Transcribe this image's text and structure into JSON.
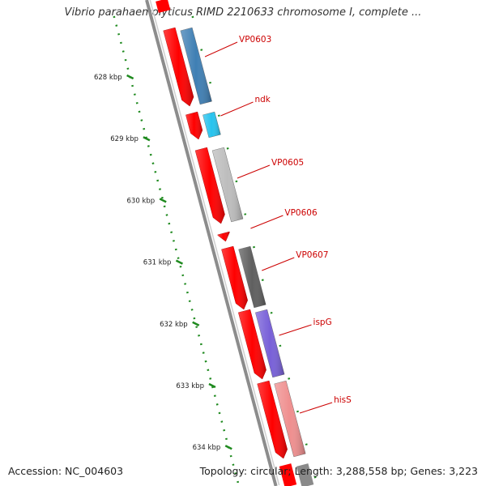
{
  "title": "Vibrio parahaemolyticus RIMD 2210633 chromosome I, complete ...",
  "footer": {
    "accession": "Accession: NC_004603",
    "topology": "Topology: circular; Length: 3,288,558 bp; Genes: 3,223"
  },
  "ruler": {
    "ticks": [
      "628 kbp",
      "629 kbp",
      "630 kbp",
      "631 kbp",
      "632 kbp",
      "633 kbp",
      "634 kbp"
    ]
  },
  "colors": {
    "backbone": "#8c8c8c",
    "cds": "#ff0000",
    "ruler": "#1f8a1f",
    "label": "#cc0000"
  },
  "features": [
    {
      "name": "VP0603",
      "color": "#3f7fb4"
    },
    {
      "name": "ndk",
      "color": "#27c3ee"
    },
    {
      "name": "VP0605",
      "color": "#bdbdbd"
    },
    {
      "name": "VP0606",
      "color": "#ff0000"
    },
    {
      "name": "VP0607",
      "color": "#5f5f5f"
    },
    {
      "name": "ispG",
      "color": "#7860d8"
    },
    {
      "name": "hisS",
      "color": "#ef8f8f"
    }
  ]
}
